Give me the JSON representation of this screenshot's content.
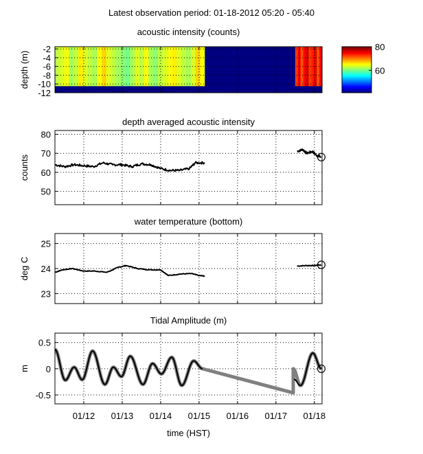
{
  "title": "Latest observation period: 01-18-2012 05:20 - 05:40",
  "chart_data": [
    {
      "type": "heatmap",
      "title": "acoustic intensity (counts)",
      "ylabel": "depth (m)",
      "xlim": [
        11.25,
        18.2
      ],
      "ylim": [
        -12,
        -1.5
      ],
      "yticks": [
        -2,
        -4,
        -6,
        -8,
        -10,
        -12
      ],
      "ytick_labels": [
        "-2",
        "-4",
        "-6",
        "-8",
        "-10",
        "-12"
      ],
      "xticks": [
        12,
        13,
        14,
        15,
        16,
        17,
        18
      ],
      "grid": true,
      "colormap": "jet",
      "clim": [
        41,
        80
      ],
      "colorbar_ticks": [
        60,
        80
      ],
      "colorbar_tick_labels": [
        "60",
        "80"
      ],
      "segments": [
        {
          "x": [
            11.25,
            15.15
          ],
          "depth": [
            -10.5,
            -1.5
          ],
          "column_values": [
            63,
            64,
            65,
            62,
            63,
            66,
            64,
            63,
            62,
            65,
            67,
            64,
            63,
            62,
            61,
            60,
            62,
            64,
            63,
            65,
            62,
            61,
            63,
            64,
            65,
            66,
            64,
            63,
            62,
            64,
            67,
            65
          ]
        },
        {
          "x": [
            15.15,
            17.5
          ],
          "depth": [
            -10.5,
            -1.5
          ],
          "column_values": [
            41
          ]
        },
        {
          "x": [
            17.5,
            18.2
          ],
          "depth": [
            -10.5,
            -1.5
          ],
          "column_values": [
            73,
            76,
            72,
            75,
            77,
            73,
            74,
            76,
            72,
            75
          ]
        }
      ],
      "below_bottom_value": 41
    },
    {
      "type": "line",
      "title": "depth averaged acoustic intensity",
      "ylabel": "counts",
      "xlim": [
        11.25,
        18.2
      ],
      "ylim": [
        43,
        82
      ],
      "yticks": [
        50,
        60,
        70,
        80
      ],
      "ytick_labels": [
        "50",
        "60",
        "70",
        "80"
      ],
      "xticks": [
        12,
        13,
        14,
        15,
        16,
        17,
        18
      ],
      "grid": true,
      "series": [
        {
          "name": "intensity",
          "segments": [
            {
              "x": [
                11.25,
                11.5,
                11.75,
                12.0,
                12.25,
                12.5,
                12.75,
                13.0,
                13.25,
                13.5,
                13.75,
                14.0,
                14.25,
                14.5,
                14.75,
                14.9,
                15.15
              ],
              "y": [
                64,
                63,
                64,
                63.5,
                63,
                65,
                64,
                64,
                63,
                64.5,
                64,
                62,
                61,
                61,
                62,
                65,
                65
              ]
            },
            {
              "x": [
                17.55,
                17.7,
                17.8,
                17.95,
                18.05,
                18.18
              ],
              "y": [
                71,
                72,
                70,
                71,
                69,
                68
              ]
            }
          ]
        }
      ],
      "marker_last": {
        "x": 18.18,
        "y": 68
      }
    },
    {
      "type": "line",
      "title": "water temperature (bottom)",
      "ylabel": "deg C",
      "xlim": [
        11.25,
        18.2
      ],
      "ylim": [
        22.6,
        25.4
      ],
      "yticks": [
        23,
        24,
        25
      ],
      "ytick_labels": [
        "23",
        "24",
        "25"
      ],
      "xticks": [
        12,
        13,
        14,
        15,
        16,
        17,
        18
      ],
      "grid": true,
      "series": [
        {
          "name": "temperature",
          "segments": [
            {
              "x": [
                11.25,
                11.45,
                11.7,
                12.0,
                12.3,
                12.6,
                12.9,
                13.1,
                13.4,
                13.7,
                14.0,
                14.2,
                14.5,
                14.8,
                15.0,
                15.15
              ],
              "y": [
                23.85,
                23.95,
                24.0,
                23.9,
                23.9,
                23.85,
                24.05,
                24.12,
                24.0,
                23.95,
                23.95,
                23.72,
                23.78,
                23.8,
                23.72,
                23.7
              ]
            },
            {
              "x": [
                17.55,
                17.8,
                18.0,
                18.18
              ],
              "y": [
                24.1,
                24.12,
                24.12,
                24.15
              ]
            }
          ]
        }
      ],
      "marker_last": {
        "x": 18.18,
        "y": 24.15
      }
    },
    {
      "type": "line",
      "title": "Tidal Amplitude (m)",
      "ylabel": "m",
      "xlabel": "time (HST)",
      "xlim": [
        11.25,
        18.2
      ],
      "ylim": [
        -0.67,
        0.68
      ],
      "yticks": [
        0.5,
        0,
        -0.5
      ],
      "ytick_labels": [
        "0.5",
        "0",
        "-0.5"
      ],
      "xticks": [
        12,
        13,
        14,
        15,
        16,
        17,
        18
      ],
      "xtick_labels": [
        "01/12",
        "01/13",
        "01/14",
        "01/15",
        "01/16",
        "01/17",
        "01/18"
      ],
      "grid": true,
      "series": [
        {
          "name": "predicted",
          "color": "#808080",
          "segments": [
            {
              "x": [
                11.25,
                11.52,
                11.75,
                11.96,
                12.23,
                12.55,
                12.77,
                12.98,
                13.21,
                13.54,
                13.79,
                14.02,
                14.29,
                14.55,
                14.86,
                15.09,
                17.45,
                17.45,
                17.64,
                17.96,
                18.18
              ],
              "y": [
                0.37,
                -0.22,
                0.03,
                -0.21,
                0.34,
                -0.3,
                0.03,
                -0.15,
                0.24,
                -0.3,
                0.1,
                -0.1,
                0.22,
                -0.32,
                0.15,
                0.0,
                -0.46,
                0.0,
                -0.32,
                0.3,
                0.0
              ]
            }
          ]
        },
        {
          "name": "observed",
          "color": "#000000",
          "segments": [
            {
              "x": [
                11.25,
                11.52,
                11.75,
                11.96,
                12.23,
                12.55,
                12.77,
                12.98,
                13.21,
                13.54,
                13.79,
                14.02,
                14.29,
                14.55,
                14.86,
                15.09
              ],
              "y": [
                0.37,
                -0.22,
                0.03,
                -0.21,
                0.34,
                -0.3,
                0.03,
                -0.15,
                0.24,
                -0.3,
                0.1,
                -0.1,
                0.22,
                -0.32,
                0.15,
                0.0
              ]
            },
            {
              "x": [
                17.47,
                17.64,
                17.96,
                18.18
              ],
              "y": [
                -0.2,
                -0.32,
                0.3,
                0.0
              ]
            }
          ]
        }
      ],
      "marker_last": {
        "x": 18.18,
        "y": 0.0
      }
    }
  ]
}
